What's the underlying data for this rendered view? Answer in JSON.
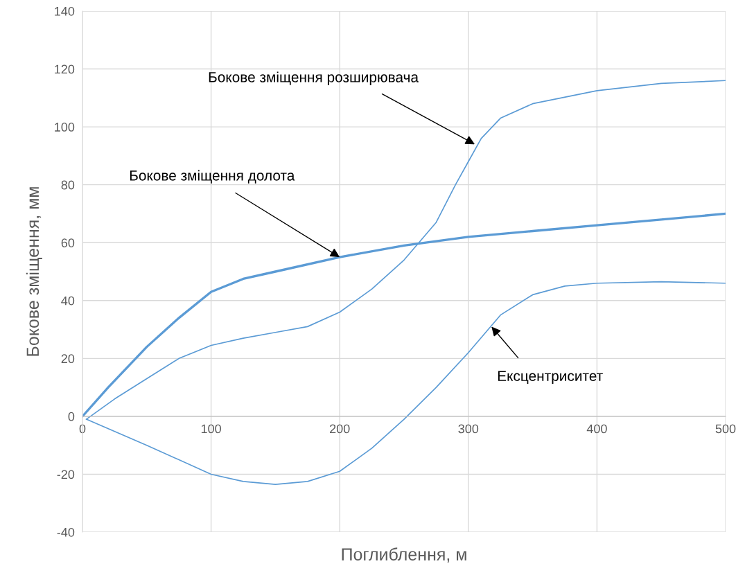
{
  "chart_data": {
    "type": "line",
    "xlabel": "Поглиблення, м",
    "ylabel": "Бокове зміщення, мм",
    "series": [
      {
        "color": "#5b9bd5",
        "x": [
          3,
          25,
          50,
          75,
          100,
          125,
          150,
          175,
          200,
          225,
          250,
          275,
          290,
          300,
          310,
          325,
          350,
          400,
          450,
          500
        ],
        "values": [
          -1,
          6,
          13,
          20,
          24.5,
          27,
          29,
          31,
          36,
          44,
          54,
          67,
          80,
          88,
          96,
          103,
          108,
          112.5,
          115,
          116
        ]
      },
      {
        "color": "#5b9bd5",
        "x": [
          0,
          20,
          50,
          75,
          100,
          125,
          150,
          200,
          250,
          300,
          350,
          400,
          450,
          500
        ],
        "values": [
          0,
          10,
          24,
          34,
          43,
          47.5,
          50,
          55,
          59,
          62,
          64,
          66,
          68,
          70
        ]
      },
      {
        "color": "#5b9bd5",
        "x": [
          3,
          50,
          100,
          125,
          150,
          175,
          200,
          225,
          250,
          275,
          300,
          325,
          350,
          375,
          400,
          450,
          500
        ],
        "values": [
          -1,
          -10,
          -20,
          -22.5,
          -23.5,
          -22.5,
          -19,
          -11,
          -1,
          10,
          22,
          35,
          42,
          45,
          46,
          46.5,
          46
        ]
      }
    ],
    "annotations": [
      {
        "text": "Бокове зміщення розширювача",
        "x": 305,
        "y": 94
      },
      {
        "text": "Бокове зміщення долота",
        "x": 200,
        "y": 55
      },
      {
        "text": "Ексцентриситет",
        "x": 318,
        "y": 31
      }
    ],
    "xlim": [
      0,
      500
    ],
    "xticks": [
      0,
      100,
      200,
      300,
      400,
      500
    ],
    "ylim": [
      -40,
      140
    ],
    "yticks": [
      -40,
      -20,
      0,
      20,
      40,
      60,
      80,
      100,
      120,
      140
    ],
    "grid": true,
    "marker": "none",
    "line_style": "solid"
  }
}
